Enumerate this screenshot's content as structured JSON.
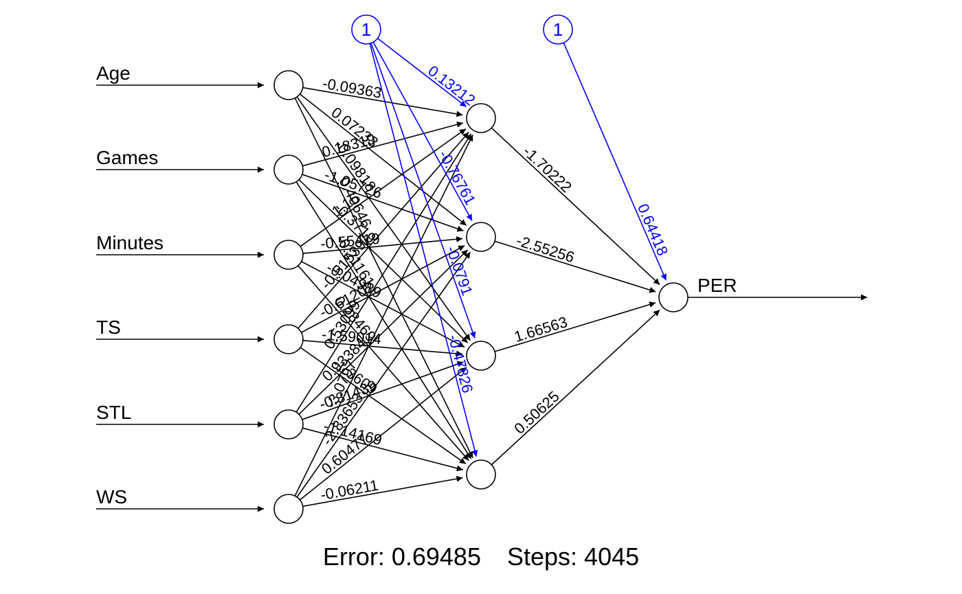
{
  "inputs": [
    "Age",
    "Games",
    "Minutes",
    "TS",
    "STL",
    "WS"
  ],
  "output": "PER",
  "bias_label": "1",
  "weights_input_hidden": [
    [
      "-0.09363",
      "0.07233",
      "-0.09818",
      "0.40646"
    ],
    [
      "0.18319",
      "-1.05726",
      "-0.3719",
      "-0.21161"
    ],
    [
      "1.16",
      "-0.55419",
      "-0.04989",
      "0.28469"
    ],
    [
      "-0.51539",
      "-0.61202",
      "-1.59014",
      "-1.3609"
    ],
    [
      "0.53099",
      "0.93384",
      "-0.31439",
      "-1.14169"
    ],
    [
      "-3.0797",
      "-2.83653",
      "0.60477",
      "-0.06211"
    ]
  ],
  "bias_hidden_weights": [
    "0.13212",
    "-0.76761",
    "-0.0791",
    "-0.47826"
  ],
  "weights_hidden_output": [
    "-1.70222",
    "-2.55256",
    "1.66563",
    "0.50625"
  ],
  "bias_output_weight": "0.64418",
  "footer": {
    "error_label": "Error: 0.69485",
    "steps_label": "Steps: 4045"
  },
  "colors": {
    "main": "#000000",
    "bias": "#0000ff"
  }
}
